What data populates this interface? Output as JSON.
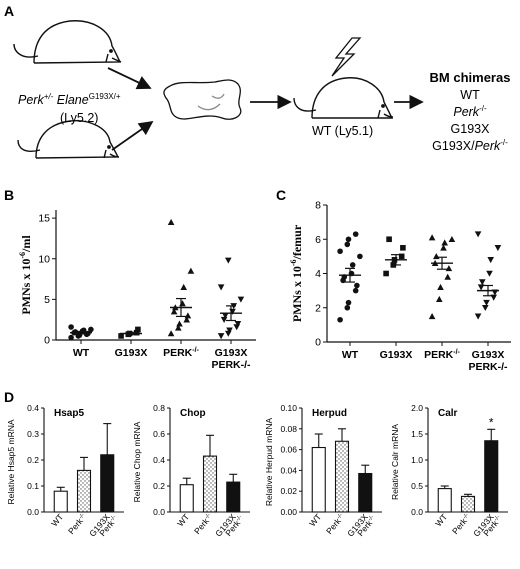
{
  "panel_a": {
    "label": "A",
    "mouse_genotype_perk": "Perk",
    "mouse_genotype_perk_sup": "+/-",
    "mouse_genotype_elane": " Elane",
    "mouse_genotype_elane_sup": "G193X/+",
    "donor_strain": "(Ly5.2)",
    "recipient": "WT (Ly5.1)",
    "chimeras_title": "BM chimeras",
    "chimeras": [
      {
        "text": "WT",
        "sup": "",
        "italic": false
      },
      {
        "text": "Perk",
        "sup": "-/-",
        "italic": true
      },
      {
        "text": "G193X",
        "sup": "",
        "italic": false
      },
      {
        "text": "G193X/",
        "text2": "Perk",
        "sup": "-/-",
        "italic": false
      }
    ]
  },
  "panel_b": {
    "label": "B"
  },
  "panel_c": {
    "label": "C"
  },
  "panel_d": {
    "label": "D"
  },
  "chart_data": [
    {
      "id": "B",
      "type": "scatter",
      "ylabel": "PMNs x 10",
      "ylabel_sup": "-6",
      "ylabel_tail": "/ml",
      "ylim": [
        0,
        16
      ],
      "yticks": [
        "0",
        "5",
        "10",
        "15"
      ],
      "yticks_values": [
        0,
        5,
        10,
        15
      ],
      "categories": [
        "WT",
        "G193X",
        "PERK",
        "G193X"
      ],
      "category_sup": [
        "",
        "",
        "-/-",
        ""
      ],
      "category_line2": [
        "",
        "",
        "",
        "PERK-/-"
      ],
      "markers": [
        "circle",
        "square",
        "triangle-up",
        "triangle-down"
      ],
      "means": [
        0.9,
        0.8,
        4.0,
        3.3
      ],
      "sems": [
        0.15,
        0.15,
        1.1,
        0.9
      ],
      "points": [
        [
          0.3,
          0.5,
          0.6,
          0.7,
          0.8,
          0.9,
          1.0,
          1.1,
          1.2,
          1.3,
          1.6
        ],
        [
          0.5,
          0.7,
          0.8,
          0.9,
          1.3
        ],
        [
          0.8,
          1.5,
          2.0,
          2.5,
          3.0,
          3.5,
          4.0,
          4.5,
          6.5,
          8.5,
          14.5
        ],
        [
          0.5,
          0.8,
          1.2,
          1.6,
          2.0,
          2.5,
          3.0,
          3.5,
          4.2,
          5.0,
          6.5,
          9.8
        ]
      ]
    },
    {
      "id": "C",
      "type": "scatter",
      "ylabel": "PMNs x 10",
      "ylabel_sup": "-6",
      "ylabel_tail": "/femur",
      "ylim": [
        0,
        8
      ],
      "yticks": [
        "0",
        "2",
        "4",
        "6",
        "8"
      ],
      "yticks_values": [
        0,
        2,
        4,
        6,
        8
      ],
      "categories": [
        "WT",
        "G193X",
        "PERK",
        "G193X"
      ],
      "category_sup": [
        "",
        "",
        "-/-",
        ""
      ],
      "category_line2": [
        "",
        "",
        "",
        "PERK-/-"
      ],
      "markers": [
        "circle",
        "square",
        "triangle-up",
        "triangle-down"
      ],
      "means": [
        3.9,
        4.8,
        4.6,
        3.0
      ],
      "sems": [
        0.4,
        0.3,
        0.35,
        0.3
      ],
      "points": [
        [
          1.3,
          2.0,
          2.3,
          3.0,
          3.3,
          3.6,
          3.8,
          4.0,
          4.5,
          5.0,
          5.3,
          5.7,
          6.0,
          6.3
        ],
        [
          4.0,
          4.5,
          4.8,
          5.0,
          5.5,
          6.0
        ],
        [
          1.5,
          2.5,
          3.2,
          3.8,
          4.3,
          4.6,
          5.0,
          5.5,
          5.8,
          6.0,
          6.1
        ],
        [
          1.5,
          2.0,
          2.3,
          2.6,
          2.9,
          3.2,
          3.5,
          4.0,
          4.8,
          5.5,
          6.3
        ]
      ]
    },
    {
      "id": "D1",
      "type": "bar",
      "title": "Hsap5",
      "ylabel": "Relative Hsap5 mRNA",
      "ylim": [
        0,
        0.4
      ],
      "yticks": [
        "0.0",
        "0.1",
        "0.2",
        "0.3",
        "0.4"
      ],
      "yticks_values": [
        0,
        0.1,
        0.2,
        0.3,
        0.4
      ],
      "categories": [
        "WT",
        "Perk-/-",
        "G193X Perk-/-"
      ],
      "values": [
        0.08,
        0.16,
        0.22
      ],
      "errors": [
        0.015,
        0.05,
        0.12
      ],
      "fills": [
        "white",
        "hatched",
        "black"
      ],
      "star": [
        false,
        false,
        false
      ]
    },
    {
      "id": "D2",
      "type": "bar",
      "title": "Chop",
      "ylabel": "Relative Chop mRNA",
      "ylim": [
        0,
        0.8
      ],
      "yticks": [
        "0.0",
        "0.2",
        "0.4",
        "0.6",
        "0.8"
      ],
      "yticks_values": [
        0,
        0.2,
        0.4,
        0.6,
        0.8
      ],
      "categories": [
        "WT",
        "Perk-/-",
        "G193X Perk-/-"
      ],
      "values": [
        0.21,
        0.43,
        0.23
      ],
      "errors": [
        0.05,
        0.16,
        0.06
      ],
      "fills": [
        "white",
        "hatched",
        "black"
      ],
      "star": [
        false,
        false,
        false
      ]
    },
    {
      "id": "D3",
      "type": "bar",
      "title": "Herpud",
      "ylabel": "Relative Herpud mRNA",
      "ylim": [
        0,
        0.1
      ],
      "yticks": [
        "0.00",
        "0.02",
        "0.04",
        "0.06",
        "0.08",
        "0.10"
      ],
      "yticks_values": [
        0,
        0.02,
        0.04,
        0.06,
        0.08,
        0.1
      ],
      "categories": [
        "WT",
        "Perk-/-",
        "G193X Perk-/-"
      ],
      "values": [
        0.062,
        0.068,
        0.037
      ],
      "errors": [
        0.013,
        0.012,
        0.008
      ],
      "fills": [
        "white",
        "hatched",
        "black"
      ],
      "star": [
        false,
        false,
        false
      ]
    },
    {
      "id": "D4",
      "type": "bar",
      "title": "Calr",
      "ylabel": "Relative Calr mRNA",
      "ylim": [
        0,
        2.0
      ],
      "yticks": [
        "0.0",
        "0.5",
        "1.0",
        "1.5",
        "2.0"
      ],
      "yticks_values": [
        0,
        0.5,
        1.0,
        1.5,
        2.0
      ],
      "categories": [
        "WT",
        "Perk-/-",
        "G193X Perk-/-"
      ],
      "values": [
        0.45,
        0.3,
        1.37
      ],
      "errors": [
        0.05,
        0.04,
        0.22
      ],
      "fills": [
        "white",
        "hatched",
        "black"
      ],
      "star": [
        false,
        false,
        true
      ]
    }
  ]
}
